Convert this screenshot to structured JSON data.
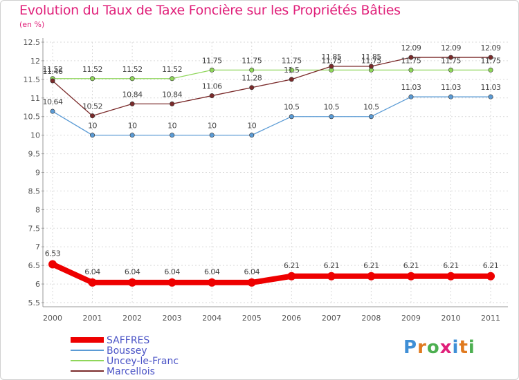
{
  "chart_data": {
    "type": "line",
    "title": "Evolution du Taux de Taxe Foncière sur les Propriétés Bâties",
    "ylabel": "(en %)",
    "xlabel": "",
    "ylim": [
      5.5,
      12.5
    ],
    "yticks": [
      "5.5",
      "6",
      "6.5",
      "7",
      "7.5",
      "8",
      "8.5",
      "9",
      "9.5",
      "10",
      "10.5",
      "11",
      "11.5",
      "12",
      "12.5"
    ],
    "x": [
      "2000",
      "2001",
      "2002",
      "2003",
      "2004",
      "2005",
      "2006",
      "2007",
      "2008",
      "2009",
      "2010",
      "2011"
    ],
    "grid": true,
    "legend": "bottom-left",
    "series": [
      {
        "name": "SAFFRES",
        "color": "#ee0000",
        "values": [
          6.53,
          6.04,
          6.04,
          6.04,
          6.04,
          6.04,
          6.21,
          6.21,
          6.21,
          6.21,
          6.21,
          6.21
        ],
        "labels": [
          "6.53",
          "6.04",
          "6.04",
          "6.04",
          "6.04",
          "6.04",
          "6.21",
          "6.21",
          "6.21",
          "6.21",
          "6.21",
          "6.21"
        ]
      },
      {
        "name": "Boussey",
        "color": "#5b9bd5",
        "values": [
          10.64,
          10,
          10,
          10,
          10,
          10,
          10.5,
          10.5,
          10.5,
          11.03,
          11.03,
          11.03
        ],
        "labels": [
          "10.64",
          "10",
          "10",
          "10",
          "10",
          "10",
          "10.5",
          "10.5",
          "10.5",
          "11.03",
          "11.03",
          "11.03"
        ]
      },
      {
        "name": "Uncey-le-Franc",
        "color": "#8fd65a",
        "values": [
          11.52,
          11.52,
          11.52,
          11.52,
          11.75,
          11.75,
          11.75,
          11.75,
          11.75,
          11.75,
          11.75,
          11.75
        ],
        "labels": [
          "11.52",
          "11.52",
          "11.52",
          "11.52",
          "11.75",
          "11.75",
          "11.75",
          "11.75",
          "11.75",
          "11.75",
          "11.75",
          "11.75"
        ]
      },
      {
        "name": "Marcellois",
        "color": "#7a2a2a",
        "values": [
          11.46,
          10.52,
          10.84,
          10.84,
          11.06,
          11.28,
          11.5,
          11.85,
          11.85,
          12.09,
          12.09,
          12.09
        ],
        "labels": [
          "11.46",
          "10.52",
          "10.84",
          "10.84",
          "11.06",
          "11.28",
          "11.5",
          "11.85",
          "11.85",
          "12.09",
          "12.09",
          "12.09"
        ]
      }
    ]
  },
  "logo": {
    "letters": [
      "P",
      "r",
      "o",
      "x",
      "i",
      "t",
      "i"
    ],
    "colors": [
      "#3f8fd6",
      "#e07a1f",
      "#4caf50",
      "#e0207a",
      "#3f8fd6",
      "#e07a1f",
      "#4caf50"
    ]
  }
}
